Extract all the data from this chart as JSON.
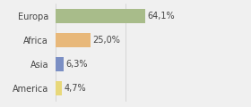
{
  "categories": [
    "Europa",
    "Africa",
    "Asia",
    "America"
  ],
  "values": [
    64.1,
    25.0,
    6.3,
    4.7
  ],
  "labels": [
    "64,1%",
    "25,0%",
    "6,3%",
    "4,7%"
  ],
  "colors": [
    "#a8bc8a",
    "#e8b87a",
    "#7b8fc4",
    "#e8d87a"
  ],
  "xlim": [
    0,
    100
  ],
  "background_color": "#f0f0f0",
  "bar_height": 0.6,
  "label_fontsize": 7.0,
  "tick_fontsize": 7.0,
  "figsize": [
    2.8,
    1.2
  ],
  "dpi": 100
}
